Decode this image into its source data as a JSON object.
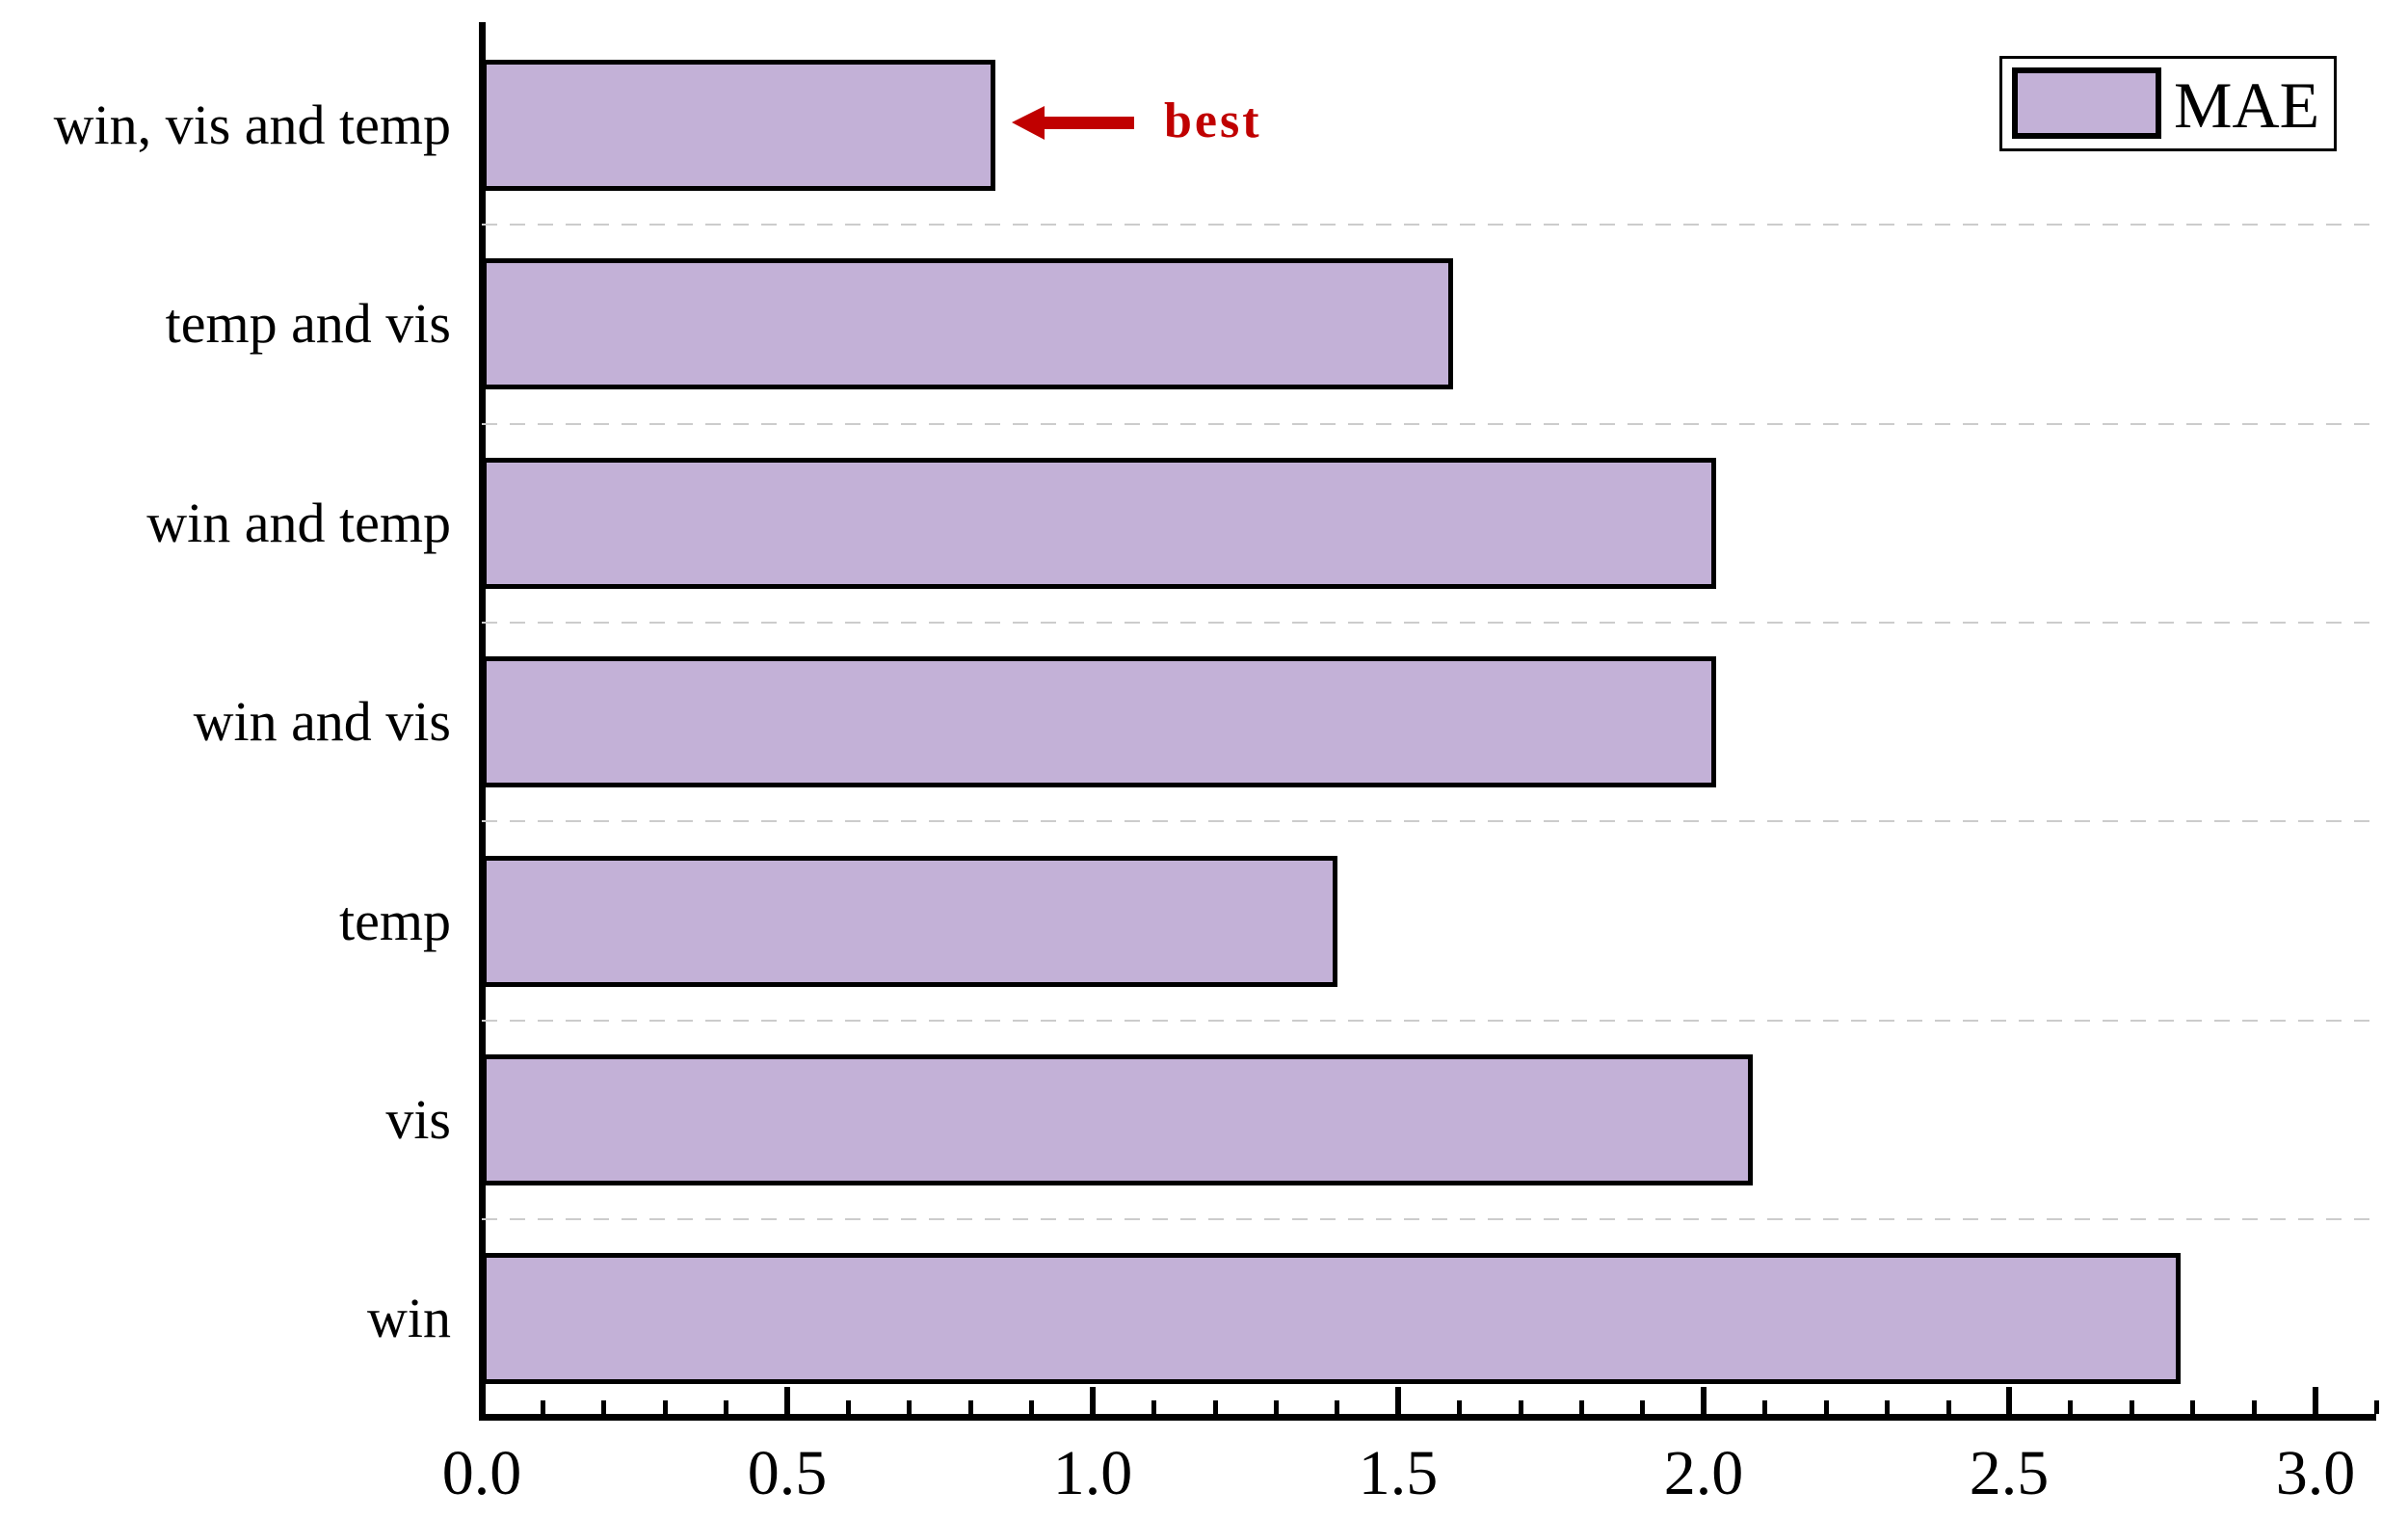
{
  "chart_data": {
    "type": "bar",
    "orientation": "horizontal",
    "title": "",
    "xlabel": "",
    "ylabel": "",
    "categories": [
      "win, vis and temp",
      "temp and vis",
      "win and temp",
      "win and vis",
      "temp",
      "vis",
      "win"
    ],
    "series": [
      {
        "name": "MAE",
        "values": [
          0.84,
          1.59,
          2.02,
          2.02,
          1.4,
          2.08,
          2.78
        ]
      }
    ],
    "xlim": [
      0,
      3.1
    ],
    "x_major_ticks": [
      0.0,
      0.5,
      1.0,
      1.5,
      2.0,
      2.5,
      3.0
    ],
    "x_tick_labels": [
      "0.0",
      "0.5",
      "1.0",
      "1.5",
      "2.0",
      "2.5",
      "3.0"
    ],
    "x_minor_tick_interval": 0.1,
    "grid": "horizontal dashed lines between category rows",
    "legend_position": "upper right",
    "bar_fill_color": "#c3b1d7",
    "bar_edge_color": "#000000",
    "gridline_color": "#cccccc"
  },
  "legend": {
    "items": [
      {
        "label": "MAE",
        "swatch_color": "#c3b1d7"
      }
    ]
  },
  "annotation": {
    "text": "best",
    "color": "#c00000",
    "target_category": "win, vis and temp",
    "arrow_direction": "left"
  }
}
